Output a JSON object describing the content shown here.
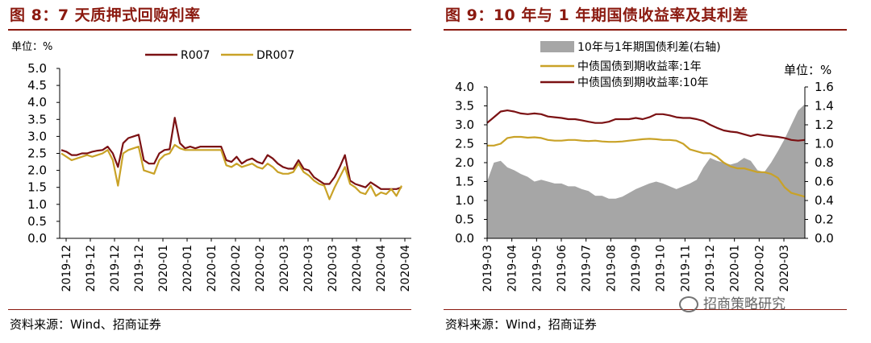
{
  "left": {
    "title": "图 8：7 天质押式回购利率",
    "source": "资料来源：Wind、招商证券"
  },
  "right": {
    "title": "图 9：10 年与 1 年期国债收益率及其利差",
    "source": "资料来源：Wind，招商证券"
  },
  "watermark": "招商策略研究",
  "colors": {
    "dark_red": "#7b1113",
    "gold": "#c9a227",
    "gray": "#a6a6a6",
    "title_red": "#8b1a10"
  },
  "chart_data": [
    {
      "type": "line",
      "unit_label": "单位：%",
      "ylim": [
        0,
        5
      ],
      "y_ticks": [
        "0.0",
        "0.5",
        "1.0",
        "1.5",
        "2.0",
        "2.5",
        "3.0",
        "3.5",
        "4.0",
        "4.5",
        "5.0"
      ],
      "x_tick_labels": [
        "2019-12",
        "2019-12",
        "2019-12",
        "2019-12",
        "2020-01",
        "2020-01",
        "2020-01",
        "2020-02",
        "2020-02",
        "2020-03",
        "2020-03",
        "2020-03",
        "2020-04",
        "2020-04",
        "2020-04"
      ],
      "legend_position": "top",
      "series": [
        {
          "name": "R007",
          "color": "#7b1113",
          "values": [
            2.6,
            2.55,
            2.45,
            2.45,
            2.5,
            2.5,
            2.55,
            2.58,
            2.6,
            2.7,
            2.5,
            2.1,
            2.8,
            2.95,
            3.0,
            3.05,
            2.3,
            2.2,
            2.2,
            2.5,
            2.6,
            2.62,
            3.55,
            2.8,
            2.65,
            2.7,
            2.65,
            2.7,
            2.7,
            2.7,
            2.7,
            2.7,
            2.3,
            2.25,
            2.4,
            2.2,
            2.3,
            2.35,
            2.25,
            2.2,
            2.45,
            2.35,
            2.2,
            2.1,
            2.05,
            2.05,
            2.3,
            2.05,
            2.0,
            1.8,
            1.7,
            1.6,
            1.6,
            1.8,
            2.1,
            2.45,
            1.7,
            1.6,
            1.55,
            1.5,
            1.65,
            1.55,
            1.45,
            1.45,
            1.45,
            1.45,
            1.5
          ]
        },
        {
          "name": "DR007",
          "color": "#c9a227",
          "values": [
            2.5,
            2.4,
            2.3,
            2.35,
            2.4,
            2.45,
            2.4,
            2.45,
            2.5,
            2.6,
            2.3,
            1.55,
            2.5,
            2.6,
            2.65,
            2.7,
            2.0,
            1.95,
            1.9,
            2.3,
            2.45,
            2.5,
            2.75,
            2.65,
            2.6,
            2.6,
            2.6,
            2.6,
            2.6,
            2.6,
            2.6,
            2.6,
            2.15,
            2.1,
            2.2,
            2.1,
            2.15,
            2.2,
            2.1,
            2.05,
            2.2,
            2.1,
            1.95,
            1.9,
            1.9,
            1.95,
            2.2,
            1.95,
            1.85,
            1.7,
            1.6,
            1.55,
            1.15,
            1.5,
            1.8,
            2.1,
            1.6,
            1.5,
            1.35,
            1.3,
            1.55,
            1.25,
            1.35,
            1.3,
            1.45,
            1.25,
            1.55
          ]
        }
      ]
    },
    {
      "type": "line",
      "unit_label": "单位：%",
      "ylim": [
        0,
        4
      ],
      "y2lim": [
        0,
        1.6
      ],
      "y_ticks": [
        "0.0",
        "0.5",
        "1.0",
        "1.5",
        "2.0",
        "2.5",
        "3.0",
        "3.5",
        "4.0"
      ],
      "y2_ticks": [
        "0.0",
        "0.2",
        "0.4",
        "0.6",
        "0.8",
        "1.0",
        "1.2",
        "1.4",
        "1.6"
      ],
      "x_tick_labels": [
        "2019-03",
        "2019-04",
        "2019-05",
        "2019-06",
        "2019-07",
        "2019-08",
        "2019-09",
        "2019-10",
        "2019-11",
        "2019-12",
        "2020-01",
        "2020-02",
        "2020-03"
      ],
      "legend_position": "top-left",
      "series": [
        {
          "name": "10年与1年期国债利差(右轴)",
          "kind": "area",
          "axis": "right",
          "color": "#a6a6a6",
          "values": [
            0.6,
            0.8,
            0.82,
            0.75,
            0.72,
            0.68,
            0.65,
            0.6,
            0.62,
            0.6,
            0.58,
            0.58,
            0.55,
            0.55,
            0.52,
            0.5,
            0.45,
            0.45,
            0.42,
            0.42,
            0.44,
            0.48,
            0.52,
            0.55,
            0.58,
            0.6,
            0.58,
            0.55,
            0.52,
            0.55,
            0.58,
            0.62,
            0.75,
            0.85,
            0.82,
            0.8,
            0.78,
            0.8,
            0.85,
            0.82,
            0.72,
            0.7,
            0.8,
            0.92,
            1.05,
            1.2,
            1.35,
            1.42
          ]
        },
        {
          "name": "中债国债到期收益率:1年",
          "axis": "left",
          "color": "#c9a227",
          "values": [
            2.45,
            2.45,
            2.5,
            2.65,
            2.68,
            2.68,
            2.66,
            2.67,
            2.65,
            2.6,
            2.58,
            2.58,
            2.6,
            2.6,
            2.58,
            2.57,
            2.58,
            2.56,
            2.55,
            2.55,
            2.56,
            2.58,
            2.6,
            2.62,
            2.63,
            2.62,
            2.6,
            2.6,
            2.58,
            2.5,
            2.35,
            2.3,
            2.25,
            2.25,
            2.15,
            2.0,
            1.9,
            1.85,
            1.85,
            1.8,
            1.75,
            1.75,
            1.7,
            1.6,
            1.35,
            1.2,
            1.15,
            1.1
          ]
        },
        {
          "name": "中债国债到期收益率:10年",
          "axis": "left",
          "color": "#7b1113",
          "values": [
            3.05,
            3.2,
            3.35,
            3.38,
            3.35,
            3.3,
            3.28,
            3.3,
            3.28,
            3.22,
            3.2,
            3.18,
            3.15,
            3.15,
            3.12,
            3.08,
            3.05,
            3.05,
            3.08,
            3.15,
            3.15,
            3.15,
            3.18,
            3.15,
            3.2,
            3.28,
            3.28,
            3.25,
            3.2,
            3.18,
            3.18,
            3.15,
            3.1,
            3.0,
            2.92,
            2.85,
            2.82,
            2.8,
            2.75,
            2.7,
            2.75,
            2.72,
            2.7,
            2.68,
            2.65,
            2.6,
            2.58,
            2.6
          ]
        }
      ]
    }
  ]
}
